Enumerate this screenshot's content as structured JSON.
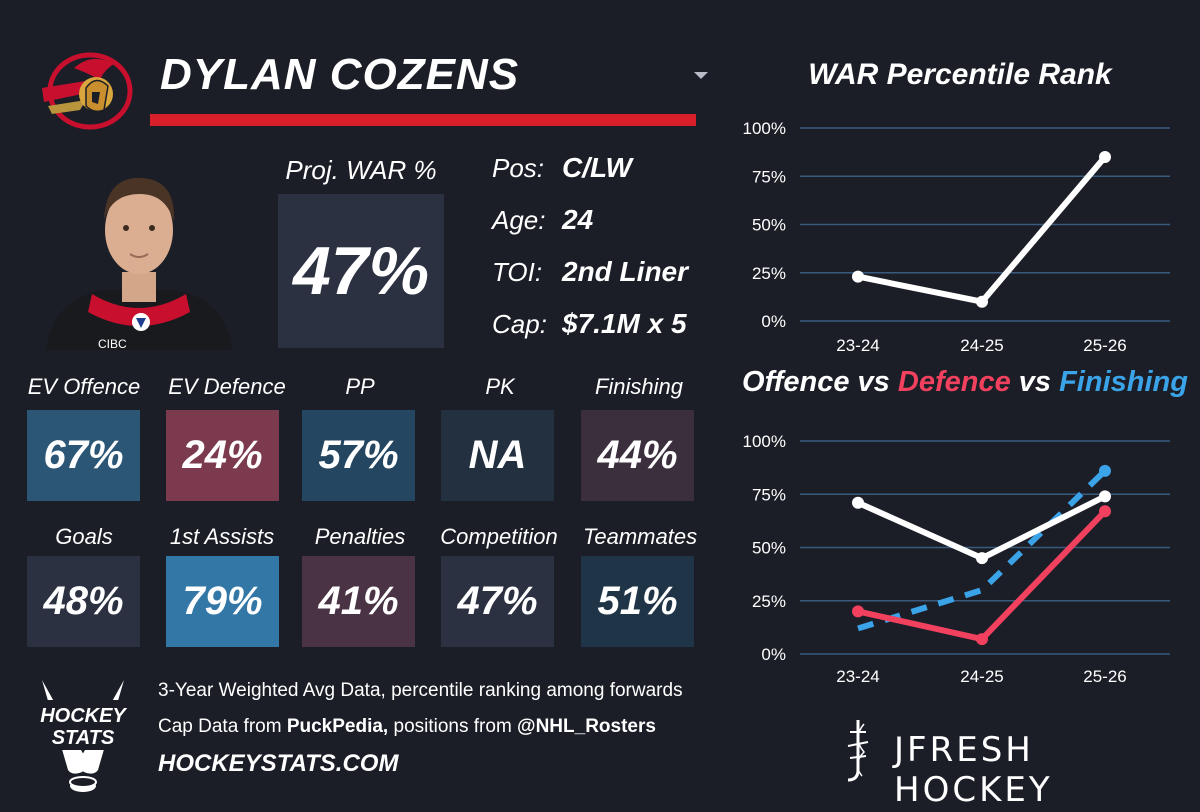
{
  "player": {
    "name": "DYLAN COZENS"
  },
  "proj": {
    "label": "Proj. WAR %",
    "value": "47%"
  },
  "info": [
    {
      "label": "Pos:",
      "value": "C/LW"
    },
    {
      "label": "Age:",
      "value": "24"
    },
    {
      "label": "TOI:",
      "value": "2nd Liner"
    },
    {
      "label": "Cap:",
      "value": "$7.1M x 5"
    }
  ],
  "stats": [
    {
      "label": "EV Offence",
      "value": "67%",
      "color": "#2b5675"
    },
    {
      "label": "EV Defence",
      "value": "24%",
      "color": "#7b3a4d"
    },
    {
      "label": "PP",
      "value": "57%",
      "color": "#244660"
    },
    {
      "label": "PK",
      "value": "NA",
      "color": "#22303f"
    },
    {
      "label": "Finishing",
      "value": "44%",
      "color": "#3b2f3e"
    },
    {
      "label": "Goals",
      "value": "48%",
      "color": "#2c3142"
    },
    {
      "label": "1st Assists",
      "value": "79%",
      "color": "#3277a6"
    },
    {
      "label": "Penalties",
      "value": "41%",
      "color": "#4a3344"
    },
    {
      "label": "Competition",
      "value": "47%",
      "color": "#2c3142"
    },
    {
      "label": "Teammates",
      "value": "51%",
      "color": "#1f3446"
    }
  ],
  "footer": {
    "line1": "3-Year Weighted Avg Data, percentile ranking among forwards",
    "line2_prefix": "Cap Data from ",
    "line2_source": "PuckPedia,",
    "line2_mid": " positions from ",
    "line2_handle": "@NHL_Rosters",
    "site": "HOCKEYSTATS.COM",
    "hs_logo_text": [
      "HOCKEY",
      "STATS"
    ],
    "brand": "JFRESH HOCKEY"
  },
  "chart_data": [
    {
      "type": "line",
      "title": "WAR Percentile Rank",
      "categories": [
        "23-24",
        "24-25",
        "25-26"
      ],
      "yticks": [
        "0%",
        "25%",
        "50%",
        "75%",
        "100%"
      ],
      "ylim": [
        0,
        100
      ],
      "series": [
        {
          "name": "WAR",
          "values": [
            23,
            10,
            85
          ],
          "color": "#ffffff",
          "dash": false
        }
      ]
    },
    {
      "type": "line",
      "title_parts": [
        {
          "text": "Offence vs ",
          "color": "#ffffff"
        },
        {
          "text": "Defence",
          "color": "#f2405f"
        },
        {
          "text": " vs ",
          "color": "#ffffff"
        },
        {
          "text": "Finishing",
          "color": "#3ba3e8"
        }
      ],
      "categories": [
        "23-24",
        "24-25",
        "25-26"
      ],
      "yticks": [
        "0%",
        "25%",
        "50%",
        "75%",
        "100%"
      ],
      "ylim": [
        0,
        100
      ],
      "series": [
        {
          "name": "Offence",
          "values": [
            71,
            45,
            74
          ],
          "color": "#ffffff",
          "dash": false
        },
        {
          "name": "Defence",
          "values": [
            20,
            7,
            67
          ],
          "color": "#f2405f",
          "dash": false
        },
        {
          "name": "Finishing",
          "values": [
            12,
            30,
            86
          ],
          "color": "#3ba3e8",
          "dash": true
        }
      ]
    }
  ]
}
